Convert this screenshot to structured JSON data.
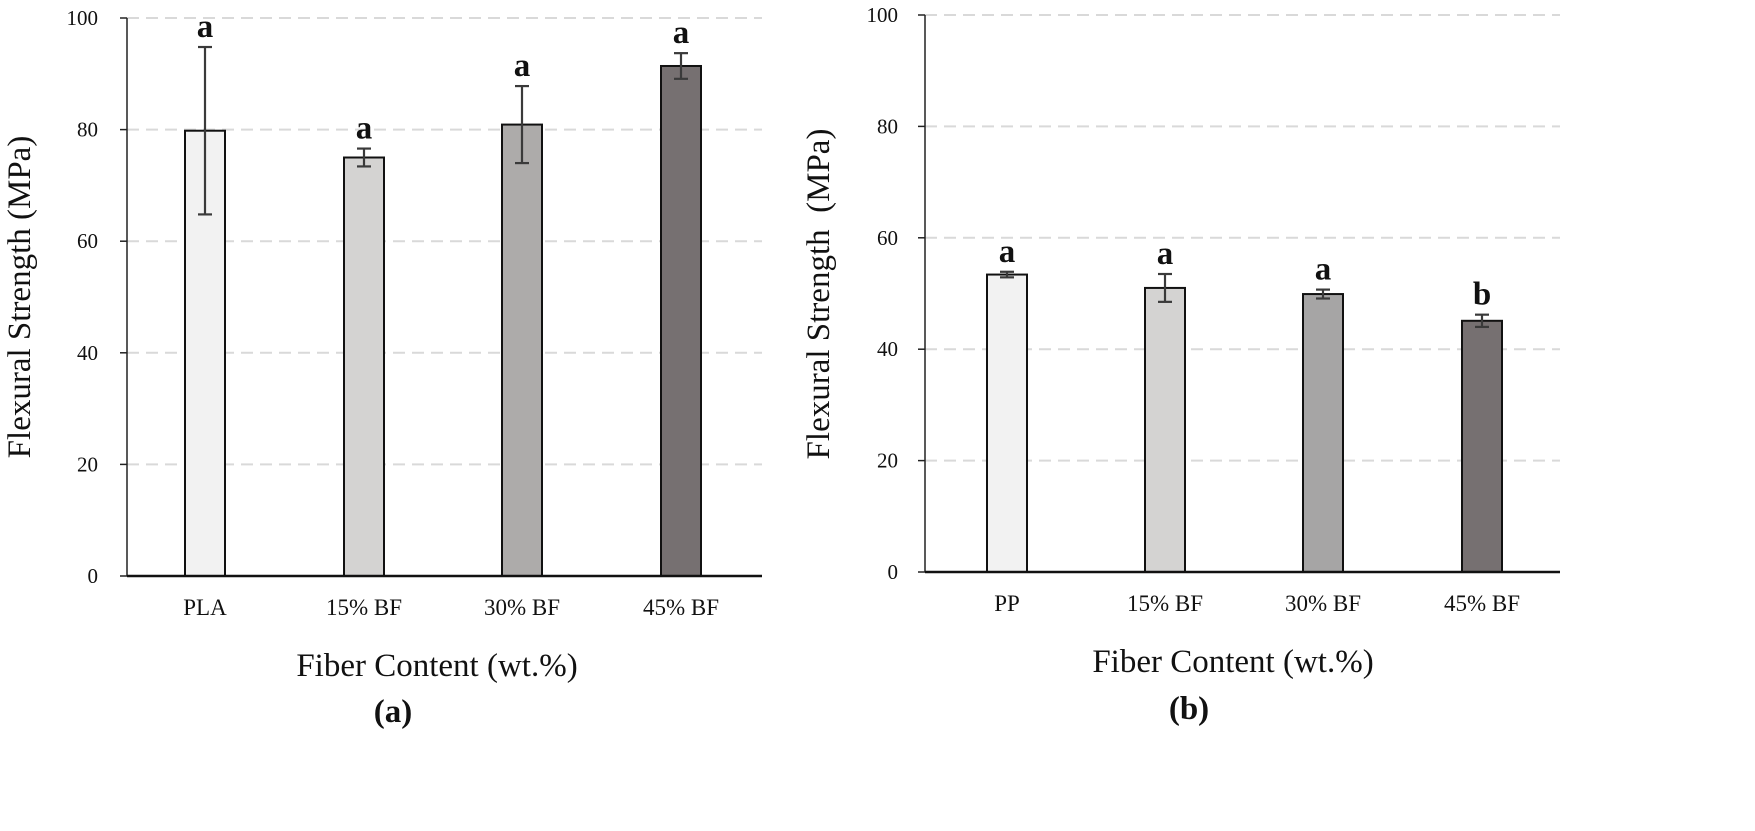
{
  "chart_data": [
    {
      "type": "bar",
      "panel_label": "(a)",
      "categories": [
        "PLA",
        "15% BF",
        "30% BF",
        "45% BF"
      ],
      "values": [
        79.8,
        75.0,
        80.9,
        91.4
      ],
      "error": [
        15.0,
        1.6,
        6.9,
        2.3
      ],
      "significance": [
        "a",
        "a",
        "a",
        "a"
      ],
      "bar_colors": [
        "#f2f2f2",
        "#d4d3d2",
        "#adabaa",
        "#767071"
      ],
      "xlabel": "Fiber Content (wt.%)",
      "ylabel": "Flexural Strength (MPa)",
      "ylim": [
        0,
        100
      ],
      "yticks": [
        0,
        20,
        40,
        60,
        80,
        100
      ],
      "grid": "dashed horizontal"
    },
    {
      "type": "bar",
      "panel_label": "(b)",
      "categories": [
        "PP",
        "15% BF",
        "30% BF",
        "45% BF"
      ],
      "values": [
        53.4,
        51.0,
        49.9,
        45.1
      ],
      "error": [
        0.5,
        2.5,
        0.8,
        1.1
      ],
      "significance": [
        "a",
        "a",
        "a",
        "b"
      ],
      "bar_colors": [
        "#f2f2f2",
        "#d4d3d2",
        "#a6a5a5",
        "#767071"
      ],
      "xlabel": "Fiber Content (wt.%)",
      "ylabel": "Flexural Strength  (MPa)",
      "ylim": [
        0,
        100
      ],
      "yticks": [
        0,
        20,
        40,
        60,
        80,
        100
      ],
      "grid": "dashed horizontal"
    }
  ]
}
